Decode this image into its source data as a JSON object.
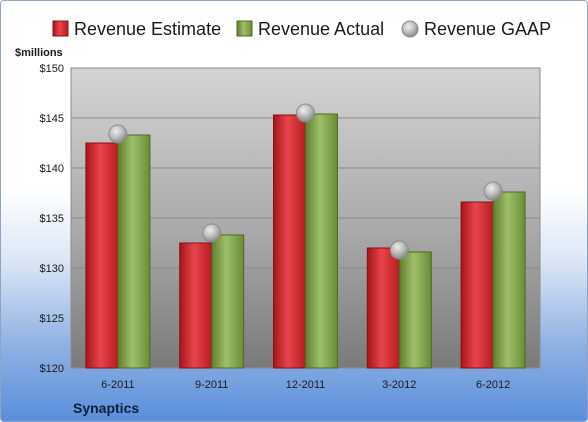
{
  "company": "Synaptics",
  "chart_data": {
    "type": "bar",
    "ylabel": "$millions",
    "ylim": [
      120,
      150
    ],
    "ytick_step": 5,
    "ytick_prefix": "$",
    "categories": [
      "6-2011",
      "9-2011",
      "12-2011",
      "3-2012",
      "6-2012"
    ],
    "series": [
      {
        "name": "Revenue Estimate",
        "type": "bar",
        "color": "#d42a2f",
        "values": [
          142.5,
          132.5,
          145.3,
          132.0,
          136.6
        ]
      },
      {
        "name": "Revenue Actual",
        "type": "bar",
        "color": "#7fa14a",
        "values": [
          143.3,
          133.3,
          145.4,
          131.6,
          137.6
        ]
      },
      {
        "name": "Revenue GAAP",
        "type": "marker",
        "color": "#a8a8a8",
        "values": [
          143.4,
          133.5,
          145.5,
          131.8,
          137.7
        ]
      }
    ],
    "grid": true,
    "legend": "top"
  }
}
